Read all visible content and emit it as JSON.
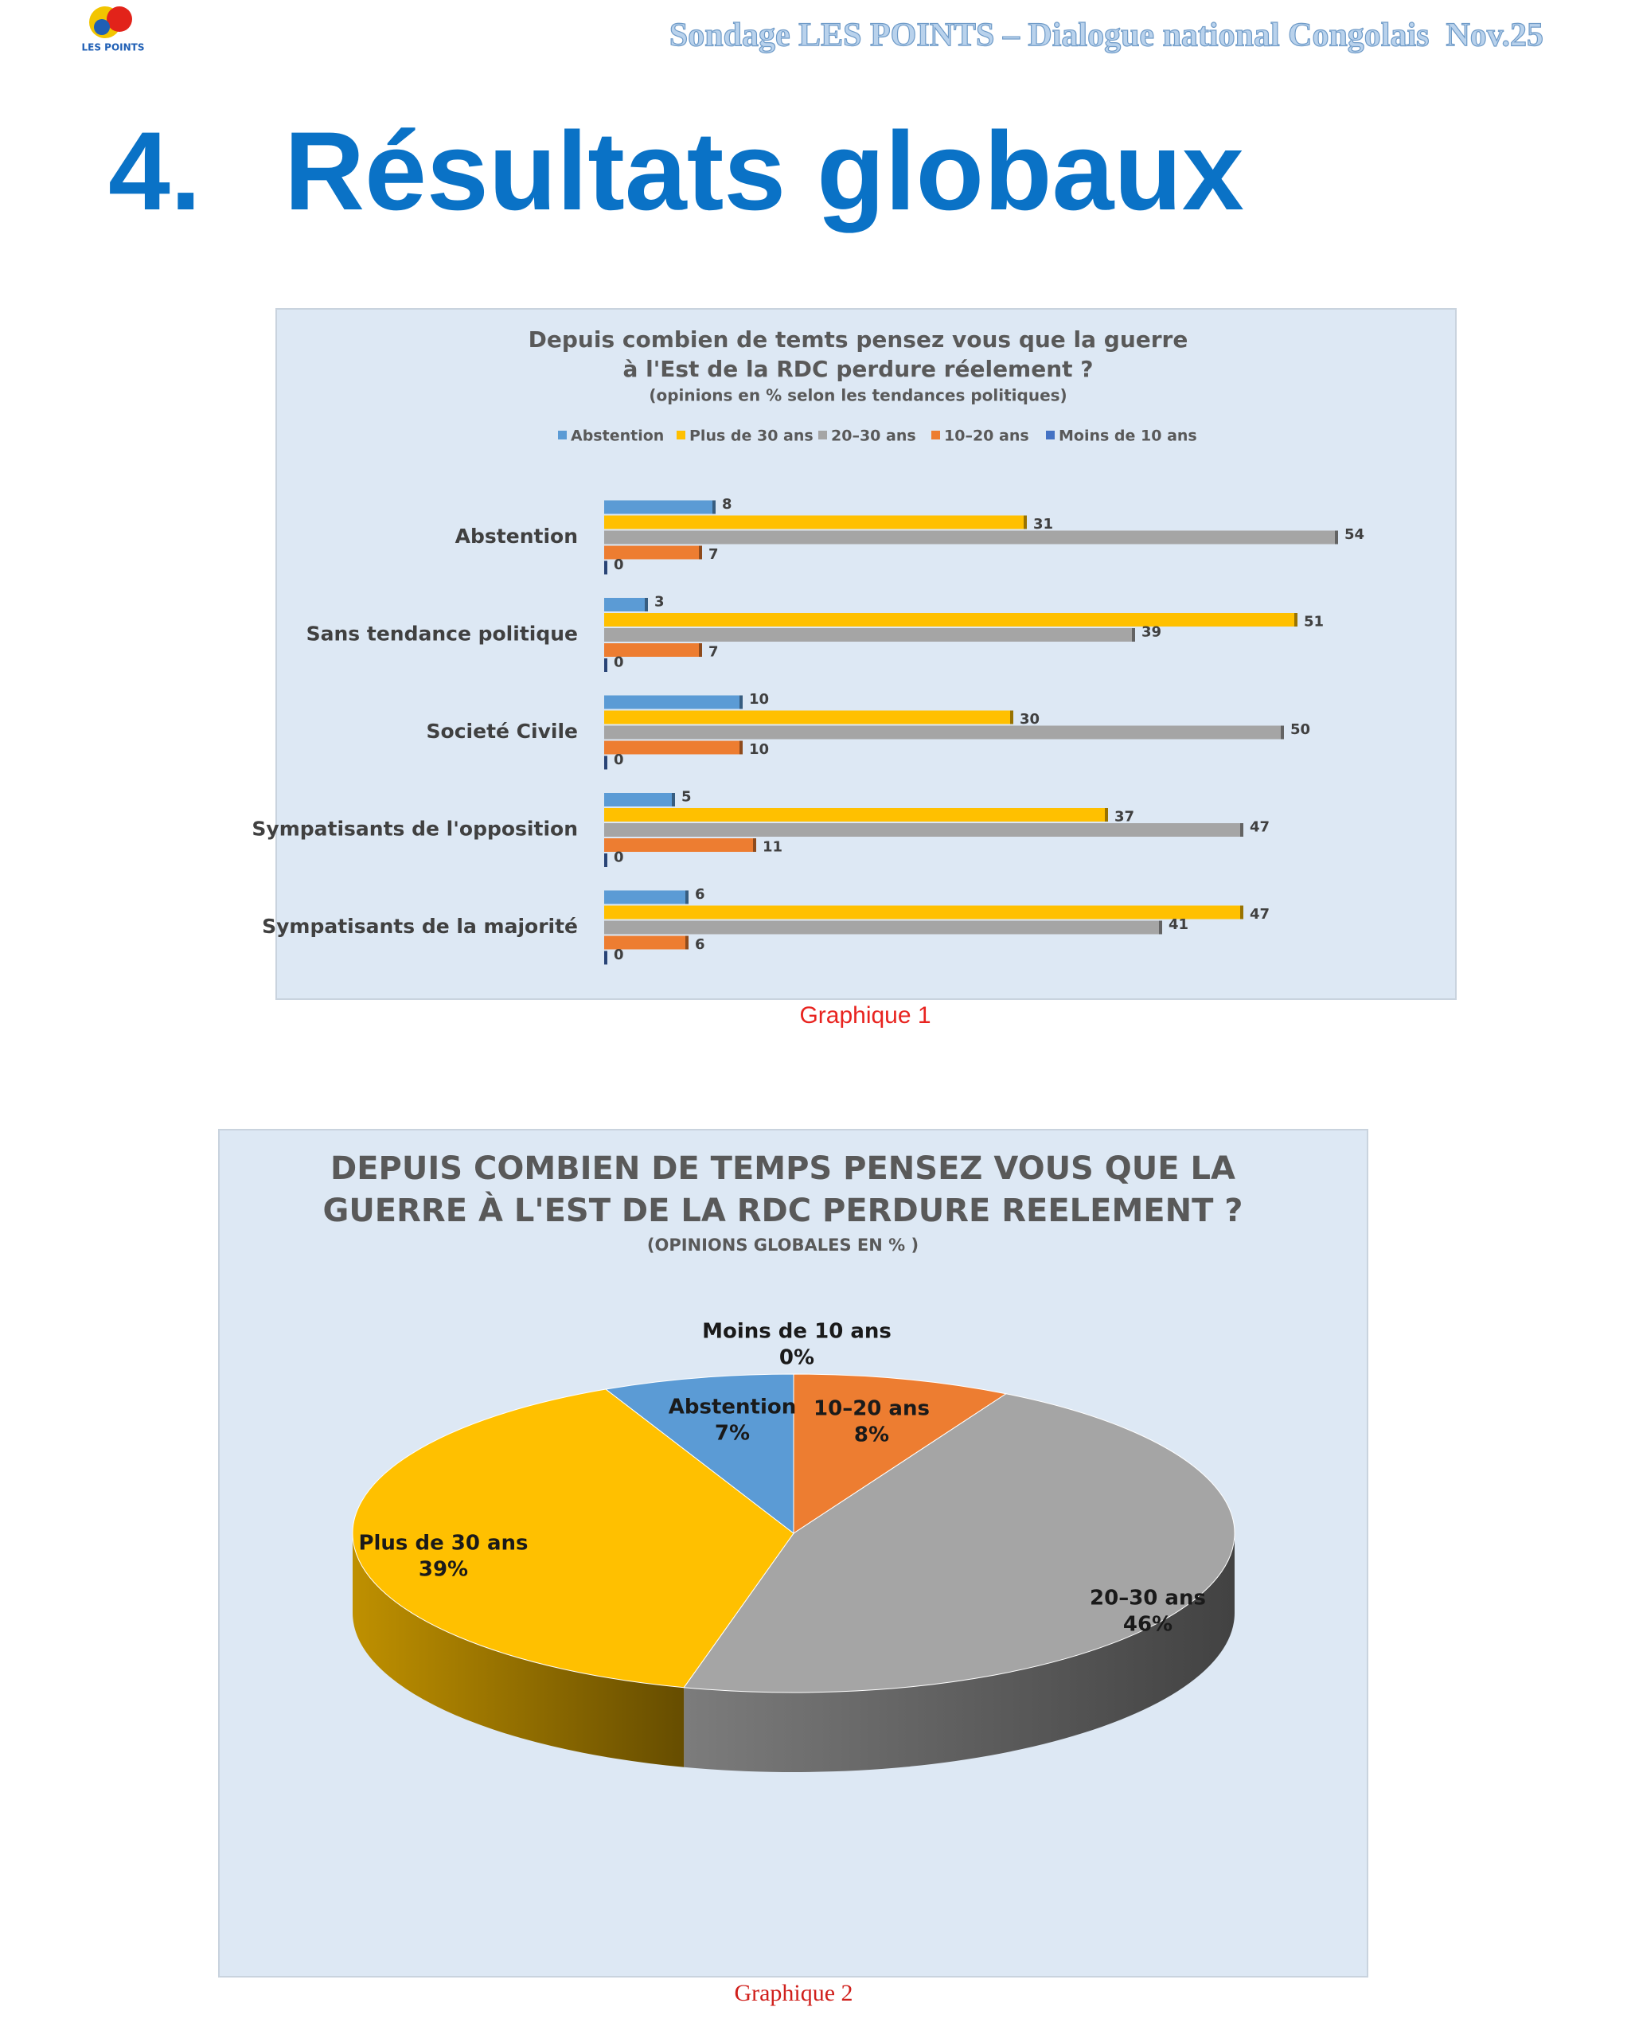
{
  "header": {
    "logo_text": "LES POINTS",
    "title": "Sondage LES POINTS – Dialogue national Congolais  Nov.25"
  },
  "heading": {
    "number": "4.",
    "text": "Résultats globaux"
  },
  "chart_data": [
    {
      "type": "bar",
      "orientation": "horizontal",
      "title_lines": [
        "Depuis combien de temts pensez vous que la guerre",
        "à l'Est de la RDC perdure réelement ?"
      ],
      "subtitle": "(opinions  en % selon les tendances politiques)",
      "categories": [
        "Abstention",
        "Sans tendance politique",
        "Societé Civile",
        "Sympatisants de l'opposition",
        "Sympatisants de la majorité"
      ],
      "series": [
        {
          "name": "Abstention",
          "color": "#5b9bd5",
          "values": [
            8,
            3,
            10,
            5,
            6
          ]
        },
        {
          "name": "Plus de 30 ans",
          "color": "#ffc000",
          "values": [
            31,
            51,
            30,
            37,
            47
          ]
        },
        {
          "name": "20–30 ans",
          "color": "#a5a5a5",
          "values": [
            54,
            39,
            50,
            47,
            41
          ]
        },
        {
          "name": "10–20 ans",
          "color": "#ed7d31",
          "values": [
            7,
            7,
            10,
            11,
            6
          ]
        },
        {
          "name": "Moins de 10 ans",
          "color": "#4472c4",
          "values": [
            0,
            0,
            0,
            0,
            0
          ]
        }
      ],
      "xlim": [
        0,
        60
      ],
      "caption": "Graphique 1"
    },
    {
      "type": "pie",
      "title_lines": [
        "DEPUIS COMBIEN DE TEMPS PENSEZ VOUS QUE LA",
        "GUERRE À L'EST DE LA RDC PERDURE REELEMENT ?"
      ],
      "subtitle": "(OPINIONS GLOBALES EN % )",
      "categories": [
        "Moins de 10 ans",
        "10–20 ans",
        "20–30 ans",
        "Plus de 30 ans",
        "Abstention"
      ],
      "values": [
        0,
        8,
        46,
        39,
        7
      ],
      "value_labels": [
        "0%",
        "8%",
        "46%",
        "39%",
        "7%"
      ],
      "colors": [
        "#4472c4",
        "#ed7d31",
        "#a5a5a5",
        "#ffc000",
        "#5b9bd5"
      ],
      "caption": "Graphique 2"
    }
  ]
}
